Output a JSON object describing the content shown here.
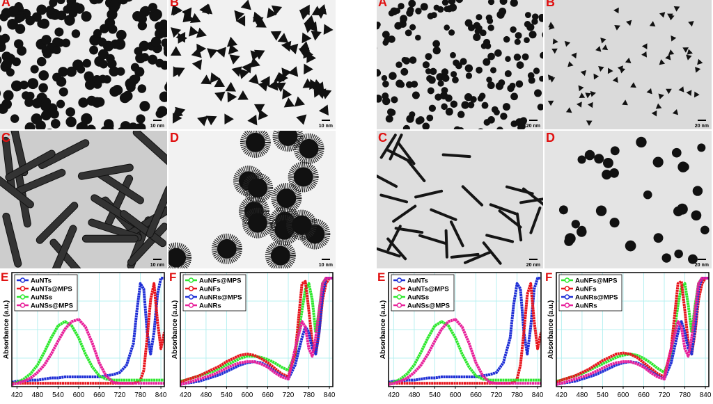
{
  "panels": [
    {
      "label": "A",
      "scale_bar": "10 nm"
    },
    {
      "label": "B",
      "scale_bar": "10 nm"
    },
    {
      "label": "C",
      "scale_bar": "10 nm"
    },
    {
      "label": "D",
      "scale_bar": "10 nm"
    },
    {
      "label": "A",
      "scale_bar": "20 nm"
    },
    {
      "label": "B",
      "scale_bar": "20 nm"
    },
    {
      "label": "C",
      "scale_bar": "20 nm"
    },
    {
      "label": "D",
      "scale_bar": "20 nm"
    }
  ],
  "chart_data": [
    {
      "type": "line",
      "title": "E",
      "ylabel": "Absorbance (a.u.)",
      "legend": "upper left",
      "grid": true,
      "x": [
        405,
        420,
        440,
        460,
        480,
        500,
        520,
        540,
        560,
        580,
        600,
        620,
        640,
        660,
        680,
        700,
        720,
        740,
        760,
        770,
        780,
        790,
        800,
        810,
        820,
        830,
        840,
        850
      ],
      "xlim": [
        405,
        850
      ],
      "xticks": [
        420,
        480,
        540,
        600,
        660,
        720,
        780,
        840
      ],
      "ylim": [
        0,
        1
      ],
      "series": [
        {
          "name": "AuNTs",
          "color": "#1f2fd6",
          "values": [
            0.04,
            0.05,
            0.05,
            0.06,
            0.06,
            0.07,
            0.08,
            0.08,
            0.09,
            0.09,
            0.09,
            0.09,
            0.09,
            0.09,
            0.1,
            0.11,
            0.13,
            0.2,
            0.4,
            0.7,
            0.95,
            0.9,
            0.5,
            0.3,
            0.5,
            0.85,
            1.0,
            1.0
          ]
        },
        {
          "name": "AuNTs@MPS",
          "color": "#e8141c",
          "values": [
            0.03,
            0.03,
            0.03,
            0.03,
            0.03,
            0.03,
            0.03,
            0.03,
            0.03,
            0.03,
            0.03,
            0.03,
            0.03,
            0.03,
            0.03,
            0.03,
            0.03,
            0.03,
            0.03,
            0.04,
            0.06,
            0.15,
            0.45,
            0.8,
            0.95,
            0.6,
            0.35,
            0.5
          ]
        },
        {
          "name": "AuNSs",
          "color": "#2ee82e",
          "values": [
            0.02,
            0.04,
            0.07,
            0.12,
            0.2,
            0.32,
            0.45,
            0.56,
            0.6,
            0.56,
            0.45,
            0.3,
            0.18,
            0.1,
            0.07,
            0.06,
            0.06,
            0.06,
            0.06,
            0.06,
            0.06,
            0.06,
            0.06,
            0.06,
            0.06,
            0.06,
            0.06,
            0.06
          ]
        },
        {
          "name": "AuNSs@MPS",
          "color": "#e8209a",
          "values": [
            0.02,
            0.03,
            0.05,
            0.08,
            0.13,
            0.2,
            0.3,
            0.42,
            0.53,
            0.6,
            0.62,
            0.55,
            0.4,
            0.22,
            0.1,
            0.04,
            0.03,
            0.03,
            0.03,
            0.03,
            0.03,
            0.03,
            0.03,
            0.03,
            0.03,
            0.03,
            0.03,
            0.03
          ]
        }
      ]
    },
    {
      "type": "line",
      "title": "F",
      "ylabel": "Absorbance (a.u.)",
      "legend": "upper left",
      "grid": true,
      "x": [
        405,
        420,
        440,
        460,
        480,
        500,
        520,
        540,
        560,
        580,
        600,
        620,
        640,
        660,
        680,
        700,
        720,
        740,
        760,
        770,
        780,
        790,
        800,
        810,
        820,
        830,
        840,
        850
      ],
      "xlim": [
        405,
        850
      ],
      "xticks": [
        420,
        480,
        540,
        600,
        660,
        720,
        780,
        840
      ],
      "ylim": [
        0,
        1
      ],
      "series": [
        {
          "name": "AuNFs@MPS",
          "color": "#2ee82e",
          "values": [
            0.05,
            0.06,
            0.08,
            0.1,
            0.12,
            0.14,
            0.17,
            0.2,
            0.23,
            0.26,
            0.28,
            0.28,
            0.27,
            0.25,
            0.22,
            0.18,
            0.15,
            0.3,
            0.7,
            0.9,
            0.95,
            0.8,
            0.5,
            0.7,
            0.95,
            1.0,
            1.0,
            1.0
          ]
        },
        {
          "name": "AuNFs",
          "color": "#e8141c",
          "values": [
            0.04,
            0.06,
            0.08,
            0.1,
            0.13,
            0.16,
            0.19,
            0.23,
            0.26,
            0.29,
            0.3,
            0.29,
            0.26,
            0.22,
            0.17,
            0.12,
            0.09,
            0.3,
            0.95,
            0.97,
            0.7,
            0.4,
            0.3,
            0.5,
            0.8,
            0.95,
            1.0,
            1.0
          ]
        },
        {
          "name": "AuNRs@MPS",
          "color": "#1f2fd6",
          "values": [
            0.02,
            0.03,
            0.04,
            0.05,
            0.07,
            0.09,
            0.11,
            0.14,
            0.17,
            0.2,
            0.22,
            0.23,
            0.22,
            0.19,
            0.14,
            0.1,
            0.07,
            0.2,
            0.45,
            0.55,
            0.5,
            0.35,
            0.3,
            0.5,
            0.85,
            1.0,
            1.0,
            1.0
          ]
        },
        {
          "name": "AuNRs",
          "color": "#e8209a",
          "values": [
            0.02,
            0.03,
            0.05,
            0.07,
            0.09,
            0.11,
            0.14,
            0.17,
            0.2,
            0.22,
            0.23,
            0.23,
            0.21,
            0.18,
            0.13,
            0.09,
            0.07,
            0.35,
            0.6,
            0.55,
            0.35,
            0.28,
            0.45,
            0.7,
            0.95,
            1.0,
            1.0,
            1.0
          ]
        }
      ]
    },
    {
      "type": "line",
      "title": "E",
      "ylabel": "Absorbance (a.u.)",
      "legend": "upper left",
      "grid": true,
      "x": [
        405,
        420,
        440,
        460,
        480,
        500,
        520,
        540,
        560,
        580,
        600,
        620,
        640,
        660,
        680,
        700,
        720,
        740,
        760,
        770,
        780,
        790,
        800,
        810,
        820,
        830,
        840,
        850
      ],
      "xlim": [
        405,
        850
      ],
      "xticks": [
        420,
        480,
        540,
        600,
        660,
        720,
        780,
        840
      ],
      "ylim": [
        0,
        1
      ],
      "series": [
        {
          "name": "AuNTs",
          "color": "#1f2fd6",
          "values": [
            0.04,
            0.05,
            0.05,
            0.06,
            0.06,
            0.07,
            0.08,
            0.08,
            0.09,
            0.09,
            0.09,
            0.09,
            0.09,
            0.09,
            0.1,
            0.11,
            0.13,
            0.22,
            0.45,
            0.75,
            0.95,
            0.9,
            0.5,
            0.3,
            0.55,
            0.9,
            1.0,
            1.0
          ]
        },
        {
          "name": "AuNTs@MPS",
          "color": "#e8141c",
          "values": [
            0.03,
            0.03,
            0.03,
            0.03,
            0.03,
            0.03,
            0.03,
            0.03,
            0.03,
            0.03,
            0.03,
            0.03,
            0.03,
            0.03,
            0.03,
            0.03,
            0.03,
            0.03,
            0.03,
            0.04,
            0.07,
            0.2,
            0.5,
            0.85,
            0.95,
            0.6,
            0.35,
            0.5
          ]
        },
        {
          "name": "AuNSs",
          "color": "#2ee82e",
          "values": [
            0.02,
            0.04,
            0.07,
            0.12,
            0.2,
            0.32,
            0.45,
            0.56,
            0.6,
            0.56,
            0.45,
            0.3,
            0.18,
            0.1,
            0.07,
            0.06,
            0.06,
            0.06,
            0.06,
            0.06,
            0.06,
            0.06,
            0.06,
            0.06,
            0.06,
            0.06,
            0.06,
            0.06
          ]
        },
        {
          "name": "AuNSs@MPS",
          "color": "#e8209a",
          "values": [
            0.02,
            0.03,
            0.05,
            0.08,
            0.13,
            0.2,
            0.3,
            0.42,
            0.53,
            0.6,
            0.62,
            0.55,
            0.4,
            0.22,
            0.1,
            0.04,
            0.03,
            0.03,
            0.03,
            0.03,
            0.03,
            0.03,
            0.03,
            0.03,
            0.03,
            0.03,
            0.03,
            0.03
          ]
        }
      ]
    },
    {
      "type": "line",
      "title": "F",
      "ylabel": "Absorbance (a.u.)",
      "legend": "upper left",
      "grid": true,
      "x": [
        405,
        420,
        440,
        460,
        480,
        500,
        520,
        540,
        560,
        580,
        600,
        620,
        640,
        660,
        680,
        700,
        720,
        740,
        760,
        770,
        780,
        790,
        800,
        810,
        820,
        830,
        840,
        850
      ],
      "xlim": [
        405,
        850
      ],
      "xticks": [
        420,
        480,
        540,
        600,
        660,
        720,
        780,
        840
      ],
      "ylim": [
        0,
        1
      ],
      "series": [
        {
          "name": "AuNFs@MPS",
          "color": "#2ee82e",
          "values": [
            0.05,
            0.06,
            0.08,
            0.1,
            0.12,
            0.15,
            0.18,
            0.21,
            0.24,
            0.27,
            0.29,
            0.3,
            0.29,
            0.26,
            0.22,
            0.17,
            0.13,
            0.3,
            0.75,
            0.92,
            0.95,
            0.75,
            0.5,
            0.75,
            0.95,
            1.0,
            1.0,
            1.0
          ]
        },
        {
          "name": "AuNFs",
          "color": "#e8141c",
          "values": [
            0.04,
            0.06,
            0.08,
            0.1,
            0.13,
            0.16,
            0.2,
            0.24,
            0.27,
            0.3,
            0.31,
            0.3,
            0.27,
            0.22,
            0.17,
            0.12,
            0.09,
            0.35,
            0.95,
            0.97,
            0.7,
            0.4,
            0.3,
            0.5,
            0.8,
            0.95,
            1.0,
            1.0
          ]
        },
        {
          "name": "AuNRs@MPS",
          "color": "#1f2fd6",
          "values": [
            0.02,
            0.03,
            0.04,
            0.05,
            0.07,
            0.09,
            0.11,
            0.14,
            0.17,
            0.2,
            0.22,
            0.23,
            0.22,
            0.19,
            0.14,
            0.1,
            0.07,
            0.22,
            0.5,
            0.6,
            0.5,
            0.35,
            0.3,
            0.55,
            0.9,
            1.0,
            1.0,
            1.0
          ]
        },
        {
          "name": "AuNRs",
          "color": "#e8209a",
          "values": [
            0.02,
            0.03,
            0.05,
            0.07,
            0.09,
            0.11,
            0.14,
            0.17,
            0.2,
            0.22,
            0.23,
            0.23,
            0.21,
            0.18,
            0.13,
            0.09,
            0.07,
            0.35,
            0.6,
            0.55,
            0.35,
            0.28,
            0.45,
            0.7,
            0.95,
            1.0,
            1.0,
            1.0
          ]
        }
      ]
    }
  ]
}
